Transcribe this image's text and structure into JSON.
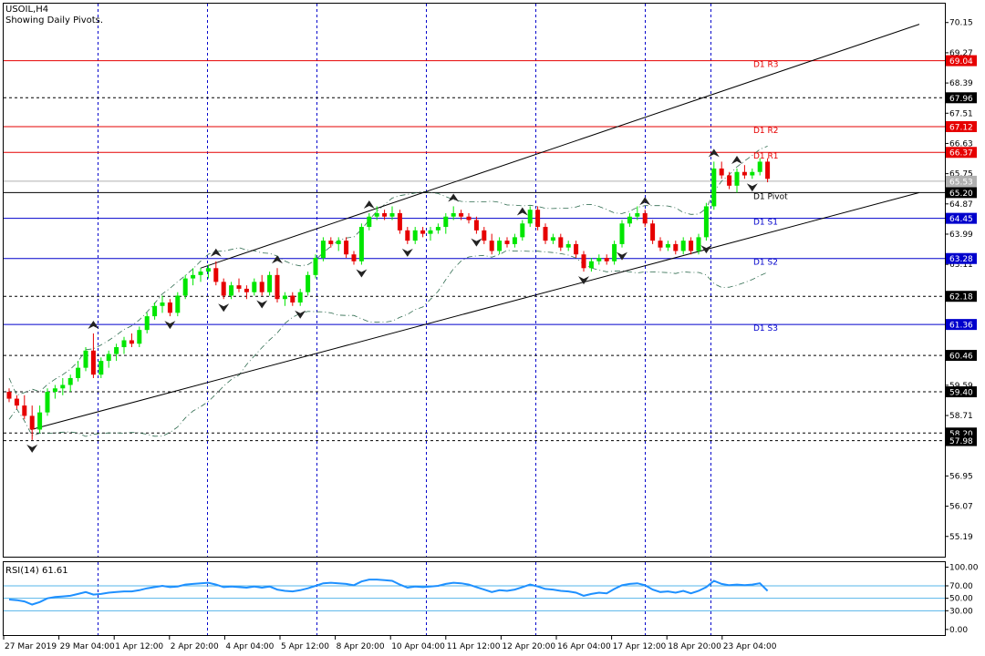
{
  "header": {
    "symbol": "USOIL,H4",
    "subtitle": "Showing Daily Pivots."
  },
  "colors": {
    "bull": "#00e600",
    "bear": "#e60000",
    "resistance": "#e60000",
    "support": "#0000cc",
    "pivot": "#000000",
    "grid": "#0000cc",
    "band": "#2f6b4f",
    "rsi": "#1e90ff",
    "rsi_levels": "#56b4e9"
  },
  "chart_data": [
    {
      "type": "candlestick",
      "title": "USOIL,H4",
      "price_axis": {
        "range": [
          54.6,
          70.7
        ],
        "ticks": [
          "70.15",
          "69.27",
          "68.39",
          "67.51",
          "66.63",
          "65.75",
          "64.87",
          "63.99",
          "63.11",
          "59.59",
          "58.71",
          "56.95",
          "56.07",
          "55.19"
        ]
      },
      "time_axis": {
        "labels": [
          "27 Mar 2019",
          "29 Mar 04:00",
          "1 Apr 12:00",
          "2 Apr 20:00",
          "4 Apr 04:00",
          "5 Apr 12:00",
          "8 Apr 20:00",
          "10 Apr 04:00",
          "11 Apr 12:00",
          "12 Apr 20:00",
          "16 Apr 04:00",
          "17 Apr 12:00",
          "18 Apr 20:00",
          "23 Apr 04:00"
        ]
      },
      "pivots": [
        {
          "name": "D1 R3",
          "value": 69.04,
          "tag": "69.04",
          "kind": "resistance"
        },
        {
          "name": "D1 R2",
          "value": 67.12,
          "tag": "67.12",
          "kind": "resistance"
        },
        {
          "name": "D1 R1",
          "value": 66.37,
          "tag": "66.37",
          "kind": "resistance"
        },
        {
          "name": "D1 Pivot",
          "value": 65.2,
          "tag": "65.20",
          "kind": "pivot"
        },
        {
          "name": "D1 S1",
          "value": 64.45,
          "tag": "64.45",
          "kind": "support"
        },
        {
          "name": "D1 S2",
          "value": 63.28,
          "tag": "63.28",
          "kind": "support"
        },
        {
          "name": "D1 S3",
          "value": 61.36,
          "tag": "61.36",
          "kind": "support"
        }
      ],
      "dashed_levels": [
        {
          "value": 67.96,
          "tag": "67.96"
        },
        {
          "value": 62.18,
          "tag": "62.18"
        },
        {
          "value": 60.46,
          "tag": "60.46"
        },
        {
          "value": 59.4,
          "tag": "59.40"
        },
        {
          "value": 58.2,
          "tag": "58.20"
        },
        {
          "value": 57.98,
          "tag": "57.98"
        }
      ],
      "current_price": {
        "value": 65.53,
        "tag": "65.53"
      },
      "channel": {
        "upper": [
          [
            0.215,
            63.0
          ],
          [
            1.0,
            70.1
          ]
        ],
        "lower": [
          [
            0.03,
            58.3
          ],
          [
            1.0,
            65.2
          ]
        ]
      },
      "ohlc": [
        [
          59.4,
          59.5,
          59.1,
          59.2
        ],
        [
          59.2,
          59.3,
          58.9,
          59.0
        ],
        [
          59.0,
          59.3,
          58.6,
          58.7
        ],
        [
          58.7,
          59.0,
          58.0,
          58.3
        ],
        [
          58.3,
          59.0,
          58.2,
          58.8
        ],
        [
          58.8,
          59.5,
          58.7,
          59.4
        ],
        [
          59.4,
          59.6,
          59.2,
          59.5
        ],
        [
          59.5,
          59.8,
          59.3,
          59.6
        ],
        [
          59.6,
          59.9,
          59.4,
          59.8
        ],
        [
          59.8,
          60.3,
          59.7,
          60.1
        ],
        [
          60.1,
          60.7,
          60.0,
          60.6
        ],
        [
          60.6,
          61.1,
          59.8,
          59.9
        ],
        [
          59.9,
          60.4,
          59.8,
          60.3
        ],
        [
          60.3,
          60.6,
          60.1,
          60.5
        ],
        [
          60.5,
          60.8,
          60.3,
          60.7
        ],
        [
          60.7,
          61.0,
          60.5,
          60.9
        ],
        [
          60.9,
          61.1,
          60.7,
          60.8
        ],
        [
          60.8,
          61.3,
          60.7,
          61.2
        ],
        [
          61.2,
          61.7,
          61.1,
          61.6
        ],
        [
          61.6,
          62.0,
          61.5,
          61.9
        ],
        [
          61.9,
          62.2,
          61.7,
          62.0
        ],
        [
          62.0,
          62.1,
          61.6,
          61.7
        ],
        [
          61.7,
          62.3,
          61.6,
          62.2
        ],
        [
          62.2,
          62.8,
          62.1,
          62.7
        ],
        [
          62.7,
          63.0,
          62.5,
          62.8
        ],
        [
          62.8,
          63.0,
          62.6,
          62.9
        ],
        [
          62.9,
          63.1,
          62.7,
          63.0
        ],
        [
          63.0,
          63.2,
          62.5,
          62.6
        ],
        [
          62.6,
          62.7,
          62.1,
          62.2
        ],
        [
          62.2,
          62.6,
          62.1,
          62.5
        ],
        [
          62.5,
          62.7,
          62.3,
          62.4
        ],
        [
          62.4,
          62.5,
          62.1,
          62.3
        ],
        [
          62.3,
          62.7,
          62.2,
          62.6
        ],
        [
          62.6,
          62.8,
          62.2,
          62.3
        ],
        [
          62.3,
          62.9,
          62.2,
          62.8
        ],
        [
          62.8,
          63.0,
          62.0,
          62.1
        ],
        [
          62.1,
          62.3,
          61.9,
          62.2
        ],
        [
          62.2,
          62.3,
          61.9,
          62.0
        ],
        [
          62.0,
          62.4,
          61.9,
          62.3
        ],
        [
          62.3,
          62.9,
          62.2,
          62.8
        ],
        [
          62.8,
          63.4,
          62.7,
          63.3
        ],
        [
          63.3,
          63.9,
          63.2,
          63.8
        ],
        [
          63.8,
          63.9,
          63.6,
          63.7
        ],
        [
          63.7,
          63.9,
          63.5,
          63.8
        ],
        [
          63.8,
          63.9,
          63.3,
          63.4
        ],
        [
          63.4,
          63.5,
          63.1,
          63.2
        ],
        [
          63.2,
          64.3,
          63.1,
          64.2
        ],
        [
          64.2,
          64.6,
          64.1,
          64.5
        ],
        [
          64.5,
          64.8,
          64.4,
          64.6
        ],
        [
          64.6,
          64.7,
          64.4,
          64.5
        ],
        [
          64.5,
          64.8,
          64.4,
          64.6
        ],
        [
          64.6,
          64.7,
          64.0,
          64.1
        ],
        [
          64.1,
          64.2,
          63.7,
          63.8
        ],
        [
          63.8,
          64.2,
          63.7,
          64.1
        ],
        [
          64.1,
          64.2,
          63.9,
          64.0
        ],
        [
          64.0,
          64.2,
          63.8,
          64.1
        ],
        [
          64.1,
          64.3,
          64.0,
          64.2
        ],
        [
          64.2,
          64.6,
          64.0,
          64.5
        ],
        [
          64.5,
          64.8,
          64.4,
          64.6
        ],
        [
          64.6,
          64.7,
          64.4,
          64.5
        ],
        [
          64.5,
          64.6,
          64.3,
          64.4
        ],
        [
          64.4,
          64.5,
          64.0,
          64.1
        ],
        [
          64.1,
          64.2,
          63.7,
          63.8
        ],
        [
          63.8,
          64.0,
          63.4,
          63.5
        ],
        [
          63.5,
          63.9,
          63.4,
          63.8
        ],
        [
          63.8,
          63.9,
          63.6,
          63.7
        ],
        [
          63.7,
          64.0,
          63.6,
          63.9
        ],
        [
          63.9,
          64.4,
          63.8,
          64.3
        ],
        [
          64.3,
          64.8,
          64.2,
          64.7
        ],
        [
          64.7,
          64.8,
          64.1,
          64.2
        ],
        [
          64.2,
          64.3,
          63.7,
          63.8
        ],
        [
          63.8,
          64.0,
          63.7,
          63.9
        ],
        [
          63.9,
          64.0,
          63.5,
          63.6
        ],
        [
          63.6,
          63.8,
          63.5,
          63.7
        ],
        [
          63.7,
          63.8,
          63.3,
          63.4
        ],
        [
          63.4,
          63.5,
          62.9,
          63.0
        ],
        [
          63.0,
          63.3,
          62.9,
          63.2
        ],
        [
          63.2,
          63.4,
          63.1,
          63.3
        ],
        [
          63.3,
          63.4,
          63.1,
          63.2
        ],
        [
          63.2,
          63.8,
          63.1,
          63.7
        ],
        [
          63.7,
          64.4,
          63.6,
          64.3
        ],
        [
          64.3,
          64.6,
          64.2,
          64.5
        ],
        [
          64.5,
          64.8,
          64.4,
          64.6
        ],
        [
          64.6,
          64.7,
          64.2,
          64.3
        ],
        [
          64.3,
          64.4,
          63.7,
          63.8
        ],
        [
          63.8,
          63.9,
          63.5,
          63.6
        ],
        [
          63.6,
          63.8,
          63.5,
          63.7
        ],
        [
          63.7,
          63.8,
          63.4,
          63.5
        ],
        [
          63.5,
          63.9,
          63.4,
          63.8
        ],
        [
          63.8,
          63.9,
          63.4,
          63.5
        ],
        [
          63.5,
          64.0,
          63.4,
          63.9
        ],
        [
          63.9,
          64.9,
          63.8,
          64.8
        ],
        [
          64.8,
          66.1,
          64.7,
          65.9
        ],
        [
          65.9,
          66.1,
          65.6,
          65.7
        ],
        [
          65.7,
          65.8,
          65.3,
          65.4
        ],
        [
          65.4,
          65.9,
          65.2,
          65.8
        ],
        [
          65.8,
          66.0,
          65.6,
          65.7
        ],
        [
          65.7,
          65.9,
          65.6,
          65.8
        ],
        [
          65.8,
          66.2,
          65.7,
          66.1
        ],
        [
          66.1,
          66.2,
          65.5,
          65.6
        ]
      ],
      "fractals_up": [
        11,
        27,
        35,
        47,
        58,
        67,
        83,
        92,
        95
      ],
      "fractals_down": [
        3,
        21,
        28,
        33,
        38,
        46,
        52,
        61,
        75,
        80,
        91,
        97
      ]
    },
    {
      "type": "line",
      "title": "RSI(14) 61.61",
      "name": "RSI(14)",
      "range": [
        -9,
        108
      ],
      "ticks": [
        "100.00",
        "70.00",
        "50.00",
        "30.00",
        "0.00"
      ],
      "levels": [
        70,
        50,
        30
      ],
      "values": [
        48,
        47,
        45,
        40,
        44,
        50,
        52,
        53,
        54,
        57,
        60,
        56,
        57,
        59,
        60,
        61,
        61,
        63,
        66,
        68,
        70,
        68,
        69,
        72,
        73,
        74,
        75,
        72,
        68,
        69,
        68,
        67,
        69,
        67,
        69,
        64,
        62,
        61,
        63,
        66,
        70,
        74,
        75,
        74,
        73,
        71,
        77,
        80,
        80,
        79,
        78,
        72,
        67,
        69,
        68,
        69,
        70,
        73,
        75,
        74,
        72,
        68,
        64,
        60,
        63,
        62,
        64,
        68,
        72,
        69,
        65,
        64,
        62,
        61,
        59,
        54,
        57,
        59,
        58,
        65,
        71,
        73,
        74,
        71,
        64,
        60,
        61,
        59,
        62,
        58,
        62,
        68,
        78,
        73,
        71,
        72,
        71,
        72,
        74,
        62
      ]
    }
  ]
}
